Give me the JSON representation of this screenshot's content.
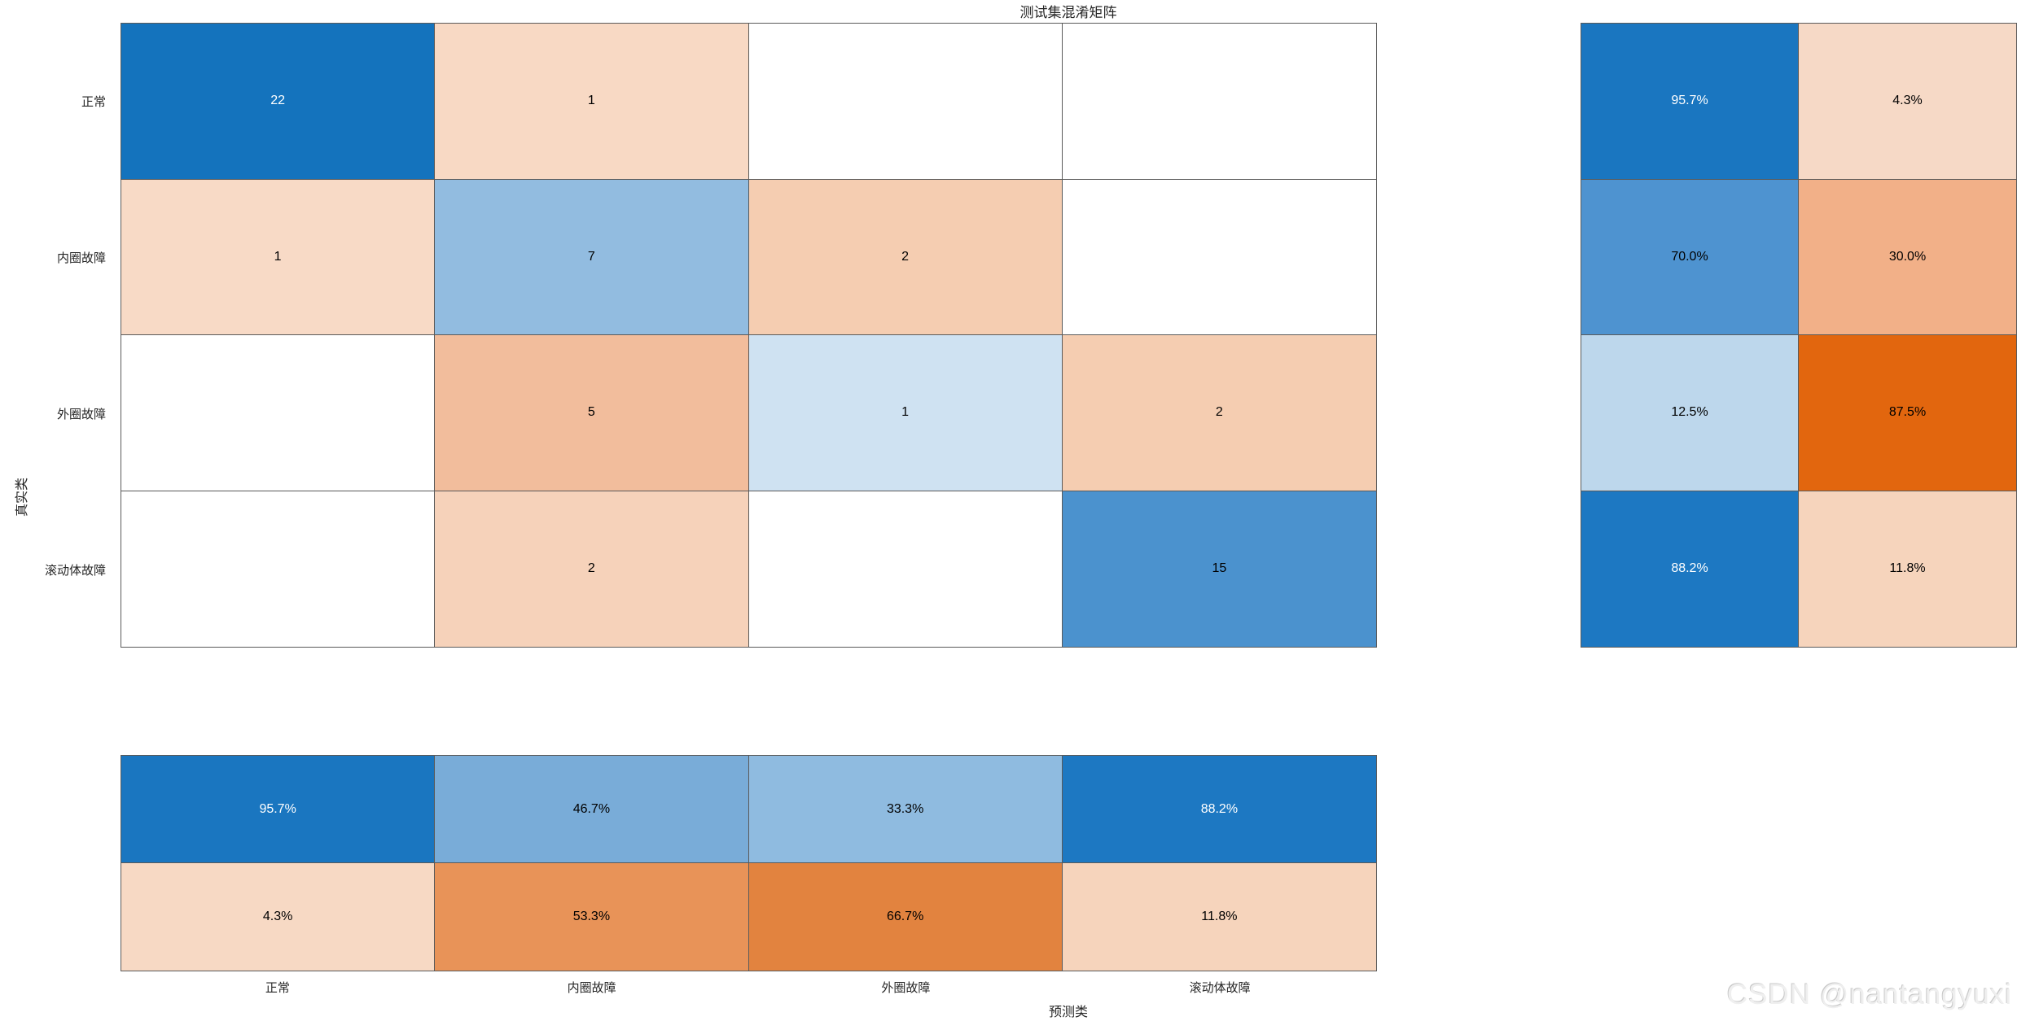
{
  "title": "测试集混淆矩阵",
  "axis": {
    "x_label": "预测类",
    "y_label": "真实类"
  },
  "classes": [
    "正常",
    "内圈故障",
    "外圈故障",
    "滚动体故障"
  ],
  "watermark": "CSDN @nantangyuxi",
  "colors": {
    "diagonal_strong_blue": "#1473bd",
    "off_diagonal_strong_orange": "#e2660e",
    "grid_line": "#5a5a5a",
    "background": "#ffffff"
  },
  "chart_data": {
    "type": "heatmap",
    "title": "测试集混淆矩阵",
    "xlabel": "预测类",
    "ylabel": "真实类",
    "classes": [
      "正常",
      "内圈故障",
      "外圈故障",
      "滚动体故障"
    ],
    "matrix_counts": [
      [
        22,
        1,
        null,
        null
      ],
      [
        1,
        7,
        2,
        null
      ],
      [
        null,
        5,
        1,
        2
      ],
      [
        null,
        2,
        null,
        15
      ]
    ],
    "row_summary_pct": [
      [
        95.7,
        4.3
      ],
      [
        70.0,
        30.0
      ],
      [
        12.5,
        87.5
      ],
      [
        88.2,
        11.8
      ]
    ],
    "col_summary_pct": [
      [
        95.7,
        46.7,
        33.3,
        88.2
      ],
      [
        4.3,
        53.3,
        66.7,
        11.8
      ]
    ],
    "legend_position": "none",
    "grid": true
  },
  "matrix_cells": [
    [
      {
        "t": "22",
        "bg": "#1473bd",
        "fg": "#ffffff"
      },
      {
        "t": "1",
        "bg": "#f8d9c4",
        "fg": "#000000"
      },
      {
        "t": "",
        "bg": "#ffffff",
        "fg": "#000000"
      },
      {
        "t": "",
        "bg": "#ffffff",
        "fg": "#000000"
      }
    ],
    [
      {
        "t": "1",
        "bg": "#f8dac6",
        "fg": "#000000"
      },
      {
        "t": "7",
        "bg": "#92bce0",
        "fg": "#000000"
      },
      {
        "t": "2",
        "bg": "#f5cdb1",
        "fg": "#000000"
      },
      {
        "t": "",
        "bg": "#ffffff",
        "fg": "#000000"
      }
    ],
    [
      {
        "t": "",
        "bg": "#ffffff",
        "fg": "#000000"
      },
      {
        "t": "5",
        "bg": "#f2bd9c",
        "fg": "#000000"
      },
      {
        "t": "1",
        "bg": "#cfe2f2",
        "fg": "#000000"
      },
      {
        "t": "2",
        "bg": "#f5cdb1",
        "fg": "#000000"
      }
    ],
    [
      {
        "t": "",
        "bg": "#ffffff",
        "fg": "#000000"
      },
      {
        "t": "2",
        "bg": "#f6d2ba",
        "fg": "#000000"
      },
      {
        "t": "",
        "bg": "#ffffff",
        "fg": "#000000"
      },
      {
        "t": "15",
        "bg": "#4b92ce",
        "fg": "#000000"
      }
    ]
  ],
  "row_summary_cells": [
    [
      {
        "t": "95.7%",
        "bg": "#1a76c0",
        "fg": "#ffffff"
      },
      {
        "t": "4.3%",
        "bg": "#f6d9c6",
        "fg": "#000000"
      }
    ],
    [
      {
        "t": "70.0%",
        "bg": "#4e93d0",
        "fg": "#000000"
      },
      {
        "t": "30.0%",
        "bg": "#f2b088",
        "fg": "#000000"
      }
    ],
    [
      {
        "t": "12.5%",
        "bg": "#bdd7ec",
        "fg": "#000000"
      },
      {
        "t": "87.5%",
        "bg": "#e2660e",
        "fg": "#000000"
      }
    ],
    [
      {
        "t": "88.2%",
        "bg": "#1d78c2",
        "fg": "#ffffff"
      },
      {
        "t": "11.8%",
        "bg": "#f6d4bc",
        "fg": "#000000"
      }
    ]
  ],
  "col_summary_cells": [
    [
      {
        "t": "95.7%",
        "bg": "#1a76c0",
        "fg": "#ffffff"
      },
      {
        "t": "46.7%",
        "bg": "#79acd8",
        "fg": "#000000"
      },
      {
        "t": "33.3%",
        "bg": "#8fbbe0",
        "fg": "#000000"
      },
      {
        "t": "88.2%",
        "bg": "#1d78c2",
        "fg": "#ffffff"
      }
    ],
    [
      {
        "t": "4.3%",
        "bg": "#f7d9c4",
        "fg": "#000000"
      },
      {
        "t": "53.3%",
        "bg": "#e89358",
        "fg": "#000000"
      },
      {
        "t": "66.7%",
        "bg": "#e2833f",
        "fg": "#000000"
      },
      {
        "t": "11.8%",
        "bg": "#f6d4bc",
        "fg": "#000000"
      }
    ]
  ]
}
